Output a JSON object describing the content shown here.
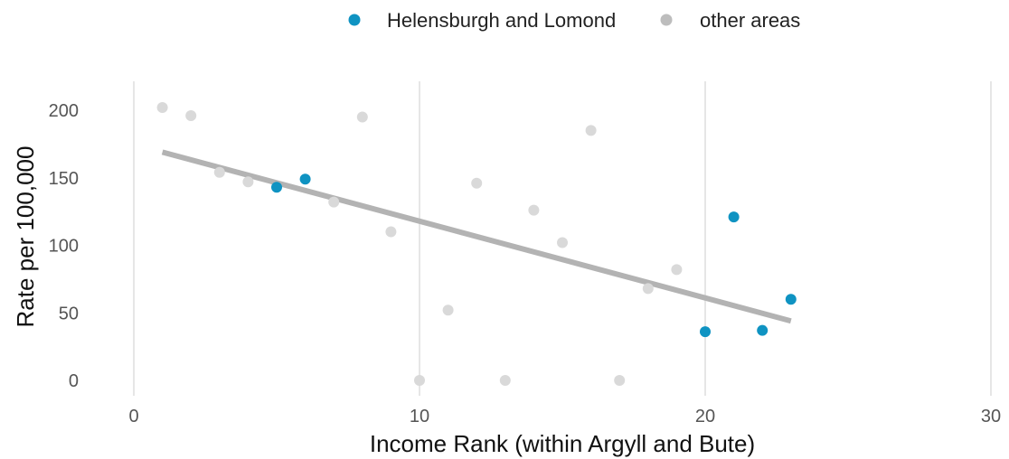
{
  "chart_data": {
    "type": "scatter",
    "xlabel": "Income Rank (within Argyll and Bute)",
    "ylabel": "Rate per 100,000",
    "xlim": [
      0,
      30
    ],
    "ylim": [
      0,
      200
    ],
    "x_ticks": [
      0,
      10,
      20,
      30
    ],
    "y_ticks": [
      0,
      50,
      100,
      150,
      200
    ],
    "x_tick_labels": [
      "0",
      "10",
      "20",
      "30"
    ],
    "y_tick_labels": [
      "0",
      "50",
      "100",
      "150",
      "200"
    ],
    "grid": "vertical major gridlines",
    "legend": {
      "placement": "top-center",
      "entries": [
        {
          "label": "Helensburgh and Lomond",
          "color": "#0f93c2"
        },
        {
          "label": "other areas",
          "color": "#bdbdbd"
        }
      ]
    },
    "series": [
      {
        "name": "other areas",
        "color": "#d9d9d9",
        "points": [
          {
            "x": 1,
            "y": 202
          },
          {
            "x": 2,
            "y": 196
          },
          {
            "x": 3,
            "y": 154
          },
          {
            "x": 4,
            "y": 147
          },
          {
            "x": 7,
            "y": 132
          },
          {
            "x": 8,
            "y": 195
          },
          {
            "x": 9,
            "y": 110
          },
          {
            "x": 10,
            "y": 0
          },
          {
            "x": 11,
            "y": 52
          },
          {
            "x": 12,
            "y": 146
          },
          {
            "x": 13,
            "y": 0
          },
          {
            "x": 14,
            "y": 126
          },
          {
            "x": 15,
            "y": 102
          },
          {
            "x": 16,
            "y": 185
          },
          {
            "x": 17,
            "y": 0
          },
          {
            "x": 18,
            "y": 68
          },
          {
            "x": 19,
            "y": 82
          }
        ]
      },
      {
        "name": "Helensburgh and Lomond",
        "color": "#0f93c2",
        "points": [
          {
            "x": 5,
            "y": 143
          },
          {
            "x": 6,
            "y": 149
          },
          {
            "x": 20,
            "y": 36
          },
          {
            "x": 21,
            "y": 121
          },
          {
            "x": 22,
            "y": 37
          },
          {
            "x": 23,
            "y": 60
          }
        ]
      }
    ],
    "trend_line": {
      "color": "#b3b3b3",
      "from": {
        "x": 1,
        "y": 169
      },
      "to": {
        "x": 23,
        "y": 44
      }
    }
  }
}
